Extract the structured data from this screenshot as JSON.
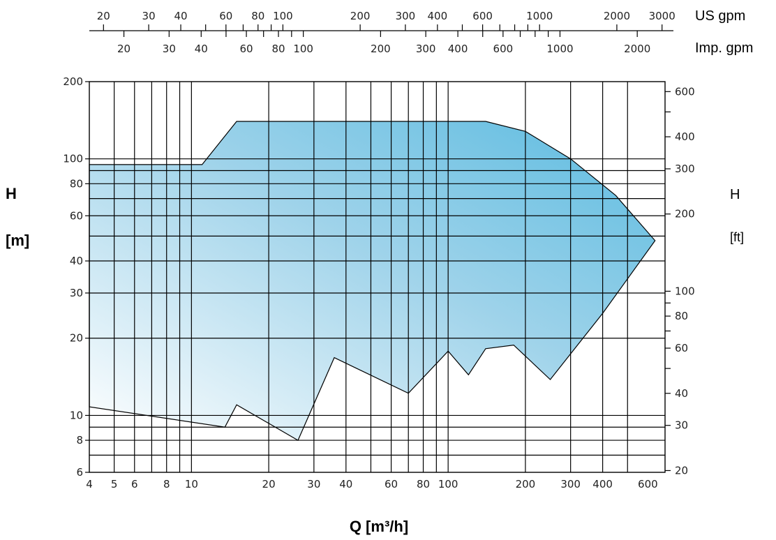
{
  "chart_data": {
    "type": "area",
    "title": "",
    "xlabel": "Q [m³/h]",
    "ylabel_left": "H",
    "ylabel_left_unit": "[m]",
    "ylabel_right": "H",
    "ylabel_right_unit": "[ft]",
    "x_scale": "log",
    "y_scale": "log",
    "xlim": [
      4,
      700
    ],
    "ylim": [
      6,
      200
    ],
    "grid": true,
    "x_ticks": [
      {
        "v": 4,
        "label": "4"
      },
      {
        "v": 5,
        "label": "5"
      },
      {
        "v": 6,
        "label": "6"
      },
      {
        "v": 8,
        "label": "8"
      },
      {
        "v": 10,
        "label": "10"
      },
      {
        "v": 20,
        "label": "20"
      },
      {
        "v": 30,
        "label": "30"
      },
      {
        "v": 40,
        "label": "40"
      },
      {
        "v": 60,
        "label": "60"
      },
      {
        "v": 80,
        "label": "80"
      },
      {
        "v": 100,
        "label": "100"
      },
      {
        "v": 200,
        "label": "200"
      },
      {
        "v": 300,
        "label": "300"
      },
      {
        "v": 400,
        "label": "400"
      },
      {
        "v": 600,
        "label": "600"
      }
    ],
    "x_gridlines": [
      5,
      6,
      7,
      8,
      9,
      10,
      20,
      30,
      40,
      50,
      60,
      70,
      80,
      90,
      100,
      200,
      300,
      400,
      500
    ],
    "y_ticks": [
      {
        "v": 6,
        "label": "6"
      },
      {
        "v": 8,
        "label": "8"
      },
      {
        "v": 10,
        "label": "10"
      },
      {
        "v": 20,
        "label": "20"
      },
      {
        "v": 30,
        "label": "30"
      },
      {
        "v": 40,
        "label": "40"
      },
      {
        "v": 60,
        "label": "60"
      },
      {
        "v": 80,
        "label": "80"
      },
      {
        "v": 100,
        "label": "100"
      },
      {
        "v": 200,
        "label": "200"
      }
    ],
    "y_gridlines": [
      7,
      8,
      9,
      10,
      20,
      30,
      40,
      50,
      60,
      70,
      80,
      90,
      100
    ],
    "y_right_ticks": [
      {
        "v": 20,
        "label": "20"
      },
      {
        "v": 30,
        "label": "30"
      },
      {
        "v": 40,
        "label": "40"
      },
      {
        "v": 50,
        "label": ""
      },
      {
        "v": 60,
        "label": "60"
      },
      {
        "v": 70,
        "label": ""
      },
      {
        "v": 80,
        "label": "80"
      },
      {
        "v": 90,
        "label": ""
      },
      {
        "v": 100,
        "label": "100"
      },
      {
        "v": 200,
        "label": "200"
      },
      {
        "v": 300,
        "label": "300"
      },
      {
        "v": 400,
        "label": "400"
      },
      {
        "v": 500,
        "label": ""
      },
      {
        "v": 600,
        "label": "600"
      }
    ],
    "us_gpm_label": "US gpm",
    "us_gpm_ticks": [
      {
        "v": 20,
        "label": "20"
      },
      {
        "v": 30,
        "label": "30"
      },
      {
        "v": 40,
        "label": "40"
      },
      {
        "v": 50,
        "label": ""
      },
      {
        "v": 60,
        "label": "60"
      },
      {
        "v": 70,
        "label": ""
      },
      {
        "v": 80,
        "label": "80"
      },
      {
        "v": 90,
        "label": ""
      },
      {
        "v": 100,
        "label": "100"
      },
      {
        "v": 200,
        "label": "200"
      },
      {
        "v": 300,
        "label": "300"
      },
      {
        "v": 400,
        "label": "400"
      },
      {
        "v": 500,
        "label": ""
      },
      {
        "v": 600,
        "label": "600"
      },
      {
        "v": 700,
        "label": ""
      },
      {
        "v": 800,
        "label": ""
      },
      {
        "v": 900,
        "label": ""
      },
      {
        "v": 1000,
        "label": "1000"
      },
      {
        "v": 2000,
        "label": "2000"
      },
      {
        "v": 3000,
        "label": "3000"
      }
    ],
    "imp_gpm_label": "Imp. gpm",
    "imp_gpm_ticks": [
      {
        "v": 20,
        "label": "20"
      },
      {
        "v": 30,
        "label": "30"
      },
      {
        "v": 40,
        "label": "40"
      },
      {
        "v": 50,
        "label": ""
      },
      {
        "v": 60,
        "label": "60"
      },
      {
        "v": 70,
        "label": ""
      },
      {
        "v": 80,
        "label": "80"
      },
      {
        "v": 90,
        "label": ""
      },
      {
        "v": 100,
        "label": "100"
      },
      {
        "v": 200,
        "label": "200"
      },
      {
        "v": 300,
        "label": "300"
      },
      {
        "v": 400,
        "label": "400"
      },
      {
        "v": 500,
        "label": ""
      },
      {
        "v": 600,
        "label": "600"
      },
      {
        "v": 700,
        "label": ""
      },
      {
        "v": 800,
        "label": ""
      },
      {
        "v": 900,
        "label": ""
      },
      {
        "v": 1000,
        "label": "1000"
      },
      {
        "v": 2000,
        "label": "2000"
      }
    ],
    "colors": {
      "fill_dark": "#5bbbe0",
      "fill_light": "#ffffff",
      "grid": "#000000"
    },
    "coverage_area": {
      "outline": [
        [
          4,
          95
        ],
        [
          11,
          95
        ],
        [
          15,
          140
        ],
        [
          140,
          140
        ],
        [
          200,
          128
        ],
        [
          300,
          100
        ],
        [
          450,
          72
        ],
        [
          640,
          48
        ],
        [
          400,
          25
        ],
        [
          250,
          13.8
        ],
        [
          180,
          18.8
        ],
        [
          140,
          18.2
        ],
        [
          120,
          14.4
        ],
        [
          100,
          17.8
        ],
        [
          70,
          12.2
        ],
        [
          36,
          16.8
        ],
        [
          26,
          8
        ],
        [
          15,
          11
        ],
        [
          13.5,
          9
        ],
        [
          4,
          10.8
        ]
      ],
      "bottom_arcs": [
        {
          "points": [
            [
              4,
              10.8
            ],
            [
              6,
              10.7
            ],
            [
              9,
              10.1
            ],
            [
              13.5,
              9
            ]
          ]
        },
        {
          "points": [
            [
              15,
              11
            ],
            [
              19,
              10.2
            ],
            [
              26,
              8
            ]
          ]
        },
        {
          "points": [
            [
              36,
              16.8
            ],
            [
              50,
              15.2
            ],
            [
              70,
              12.2
            ]
          ]
        },
        {
          "points": [
            [
              100,
              17.8
            ],
            [
              120,
              14.4
            ]
          ]
        },
        {
          "points": [
            [
              180,
              18.8
            ],
            [
              220,
              16
            ],
            [
              250,
              13.8
            ]
          ]
        }
      ]
    }
  }
}
